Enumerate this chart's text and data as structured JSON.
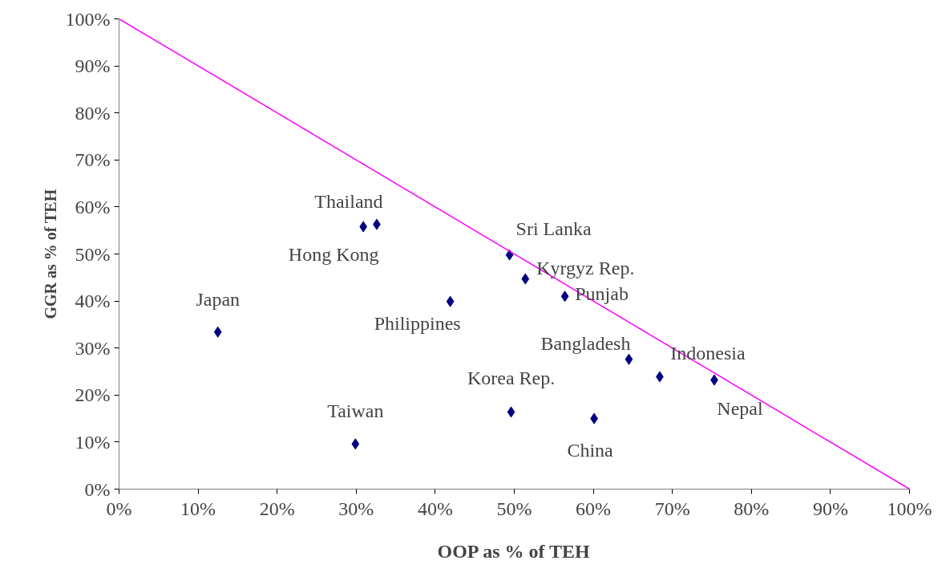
{
  "chart_data": {
    "type": "scatter",
    "xlabel": "OOP as % of TEH",
    "ylabel": "GGR as % of TEH",
    "grid": false,
    "xlim": [
      0,
      100
    ],
    "ylim": [
      0,
      100
    ],
    "xticks": [
      {
        "value": 0,
        "label": "0%"
      },
      {
        "value": 10,
        "label": "10%"
      },
      {
        "value": 20,
        "label": "20%"
      },
      {
        "value": 30,
        "label": "30%"
      },
      {
        "value": 40,
        "label": "40%"
      },
      {
        "value": 50,
        "label": "50%"
      },
      {
        "value": 60,
        "label": "60%"
      },
      {
        "value": 70,
        "label": "70%"
      },
      {
        "value": 80,
        "label": "80%"
      },
      {
        "value": 90,
        "label": "90%"
      },
      {
        "value": 100,
        "label": "100%"
      }
    ],
    "yticks": [
      {
        "value": 0,
        "label": "0%"
      },
      {
        "value": 10,
        "label": "10%"
      },
      {
        "value": 20,
        "label": "20%"
      },
      {
        "value": 30,
        "label": "30%"
      },
      {
        "value": 40,
        "label": "40%"
      },
      {
        "value": 50,
        "label": "50%"
      },
      {
        "value": 60,
        "label": "60%"
      },
      {
        "value": 70,
        "label": "70%"
      },
      {
        "value": 80,
        "label": "80%"
      },
      {
        "value": 90,
        "label": "90%"
      },
      {
        "value": 100,
        "label": "100%"
      }
    ],
    "series": [
      {
        "marker": "diamond",
        "color": "#000080",
        "x": [
          12.5,
          29.9,
          30.9,
          32.6,
          49.4,
          51.4,
          56.4,
          41.9,
          64.5,
          68.4,
          75.3,
          49.6,
          60.1
        ],
        "values": [
          33.4,
          9.6,
          55.8,
          56.3,
          49.8,
          44.7,
          41.0,
          39.9,
          27.6,
          23.9,
          23.2,
          16.4,
          15.0
        ]
      },
      {
        "type": "line",
        "marker": "none",
        "color": "#ff00ff",
        "x": [
          0,
          100
        ],
        "values": [
          100,
          0
        ]
      }
    ],
    "annotations": [
      {
        "text": "Japan",
        "x": 12.5,
        "y": 33.4
      },
      {
        "text": "Taiwan",
        "x": 29.9,
        "y": 9.6
      },
      {
        "text": "Hong Kong",
        "x": 30.9,
        "y": 55.8
      },
      {
        "text": "Thailand",
        "x": 32.6,
        "y": 56.3
      },
      {
        "text": "Sri Lanka",
        "x": 49.4,
        "y": 49.8
      },
      {
        "text": "Kyrgyz Rep.",
        "x": 51.4,
        "y": 44.7
      },
      {
        "text": "Punjab",
        "x": 56.4,
        "y": 41.0
      },
      {
        "text": "Philippines",
        "x": 41.9,
        "y": 39.9
      },
      {
        "text": "Bangladesh",
        "x": 64.5,
        "y": 27.6
      },
      {
        "text": "Indonesia",
        "x": 68.4,
        "y": 23.9
      },
      {
        "text": "Nepal",
        "x": 75.3,
        "y": 23.2
      },
      {
        "text": "Korea Rep.",
        "x": 49.6,
        "y": 16.4
      },
      {
        "text": "China",
        "x": 60.1,
        "y": 15.0
      }
    ]
  }
}
